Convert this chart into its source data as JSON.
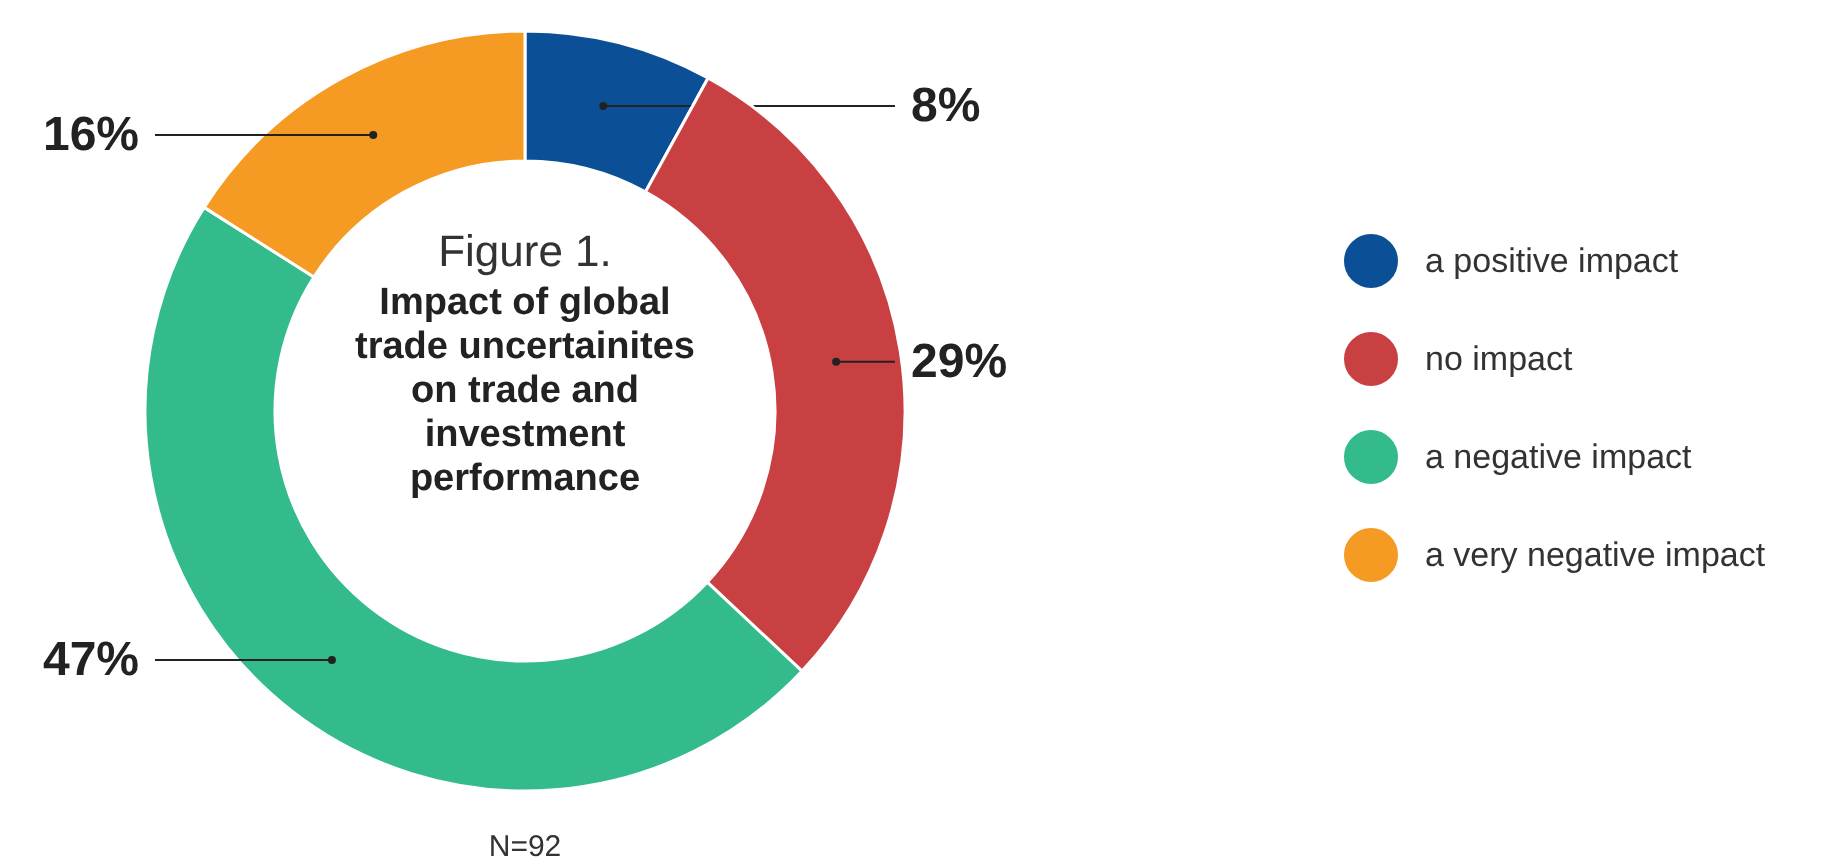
{
  "chart_data": {
    "type": "donut",
    "title": "Figure 1.",
    "subtitle": "Impact of global trade uncertainites on trade and investment performance",
    "categories": [
      "a positive impact",
      "no impact",
      "a negative impact",
      "a very negative impact"
    ],
    "values": [
      8,
      29,
      47,
      16
    ],
    "colors": [
      "#0b5096",
      "#c94043",
      "#33bb8b",
      "#f59a23"
    ],
    "value_labels": [
      "8%",
      "29%",
      "47%",
      "16%"
    ],
    "legend": "right",
    "annotations": [
      "N=92"
    ]
  }
}
